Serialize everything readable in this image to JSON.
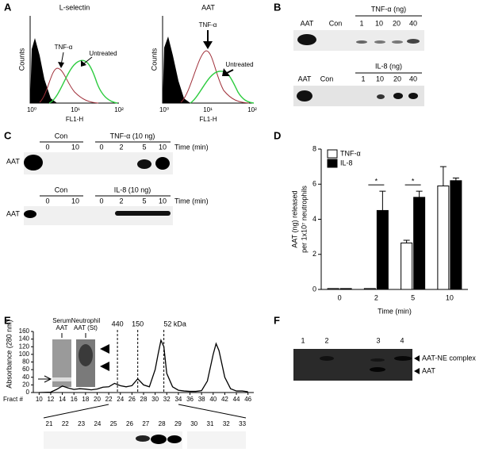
{
  "panels": {
    "A": {
      "label": "A",
      "plots": [
        {
          "title": "L-selectin",
          "ylabel": "Counts",
          "xlabel": "FL1-H",
          "xticks": [
            "10⁰",
            "10¹",
            "10²"
          ],
          "arrows": [
            "TNF-α",
            "Untreated"
          ]
        },
        {
          "title": "AAT",
          "ylabel": "Counts",
          "xlabel": "FL1-H",
          "xticks": [
            "10⁰",
            "10¹",
            "10²"
          ],
          "arrows": [
            "TNF-α",
            "Untreated"
          ]
        }
      ]
    },
    "B": {
      "label": "B",
      "rows": [
        {
          "lanes": [
            "AAT",
            "Con"
          ],
          "group": "TNF-α (ng)",
          "doses": [
            "1",
            "10",
            "20",
            "40"
          ]
        },
        {
          "lanes": [
            "AAT",
            "Con"
          ],
          "group": "IL-8 (ng)",
          "doses": [
            "1",
            "10",
            "20",
            "40"
          ]
        }
      ]
    },
    "C": {
      "label": "C",
      "rows": [
        {
          "lane": "AAT",
          "control": "Con",
          "treatment": "TNF-α (10 ng)",
          "control_times": [
            "0",
            "10"
          ],
          "times": [
            "0",
            "2",
            "5",
            "10"
          ],
          "time_label": "Time (min)"
        },
        {
          "lane": "AAT",
          "control": "Con",
          "treatment": "IL-8 (10 ng)",
          "control_times": [
            "0",
            "10"
          ],
          "times": [
            "0",
            "2",
            "5",
            "10"
          ],
          "time_label": "Time (min)"
        }
      ]
    },
    "D": {
      "label": "D"
    },
    "E": {
      "label": "E",
      "insets": [
        [
          "Serum",
          "AAT"
        ],
        [
          "Neutrophil",
          "AAT (St)"
        ]
      ],
      "fractions": [
        "21",
        "22",
        "23",
        "24",
        "25",
        "26",
        "27",
        "28",
        "29",
        "30",
        "31",
        "32",
        "33"
      ]
    },
    "F": {
      "label": "F",
      "lanes": [
        "1",
        "2",
        "3",
        "4"
      ],
      "bands": [
        "AAT-NE complex",
        "AAT"
      ]
    }
  },
  "chart_data": [
    {
      "type": "bar",
      "categories": [
        "0",
        "2",
        "5",
        "10"
      ],
      "xlabel": "Time (min)",
      "ylabel": [
        "AAT (ng) released",
        "per 1x10⁷ neutrophils"
      ],
      "ylim": [
        0,
        8
      ],
      "yticks": [
        0,
        2,
        4,
        6,
        8
      ],
      "series": [
        {
          "name": "TNF-α",
          "color": "#ffffff",
          "values": [
            0.05,
            0.05,
            2.65,
            5.9
          ],
          "errors": [
            0,
            0,
            0.15,
            1.1
          ]
        },
        {
          "name": "IL-8",
          "color": "#000000",
          "values": [
            0.05,
            4.5,
            5.25,
            6.2
          ],
          "errors": [
            0,
            1.1,
            0.35,
            0.15
          ]
        }
      ],
      "annotations": [
        "*",
        "*"
      ]
    },
    {
      "type": "line",
      "xlabel": "Fract #",
      "ylabel": "Absorbance (280 nm)",
      "color": "#000000",
      "x": [
        10,
        12,
        13,
        14,
        15,
        16,
        17,
        18,
        19,
        20,
        21,
        22,
        23,
        24,
        25,
        26,
        27,
        28,
        29,
        30,
        30.5,
        31,
        31.5,
        32,
        33,
        34,
        35,
        36,
        37,
        38,
        39,
        40,
        40.5,
        41,
        42,
        43,
        44,
        45,
        46
      ],
      "values": [
        0,
        1,
        8,
        17,
        12,
        8,
        10,
        9,
        7,
        9,
        14,
        15,
        24,
        18,
        15,
        18,
        36,
        20,
        15,
        60,
        100,
        137,
        120,
        50,
        15,
        6,
        4,
        3,
        3,
        5,
        30,
        100,
        128,
        110,
        40,
        10,
        4,
        4,
        2
      ],
      "xlim": [
        9,
        47
      ],
      "xticks": [
        10,
        12,
        14,
        16,
        18,
        20,
        22,
        24,
        26,
        28,
        30,
        32,
        34,
        36,
        38,
        40,
        42,
        44,
        46
      ],
      "ylim": [
        0,
        160
      ],
      "yticks": [
        0,
        20,
        40,
        60,
        80,
        100,
        120,
        140,
        160
      ],
      "markers": [
        {
          "x": 23.5,
          "label": "440"
        },
        {
          "x": 27,
          "label": "150"
        },
        {
          "x": 31.5,
          "label": "52 kDa"
        }
      ]
    }
  ]
}
